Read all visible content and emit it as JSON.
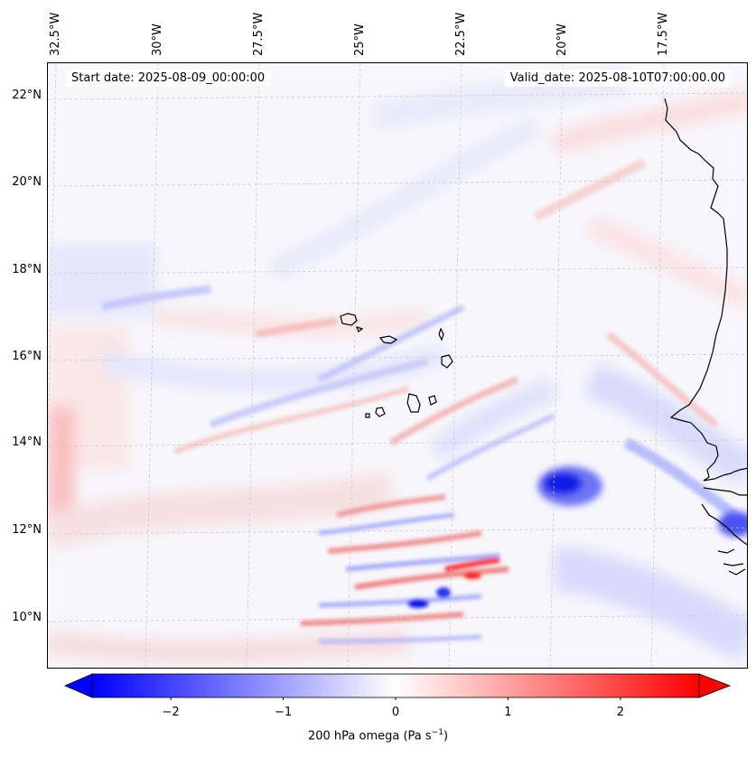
{
  "header": {
    "start_date": "Start date: 2025-08-09_00:00:00",
    "valid_date": "Valid_date: 2025-08-10T07:00:00.00"
  },
  "axes": {
    "lon_labels": [
      "32.5°W",
      "30°W",
      "27.5°W",
      "25°W",
      "22.5°W",
      "20°W",
      "17.5°W"
    ],
    "lat_labels": [
      "22°N",
      "20°N",
      "18°N",
      "16°N",
      "14°N",
      "12°N",
      "10°N"
    ]
  },
  "colorbar": {
    "tick_labels": [
      "−2",
      "−1",
      "0",
      "1",
      "2"
    ],
    "label_main": "200 hPa omega (Pa s",
    "label_sup": "−1",
    "label_end": ")",
    "range": [
      -2.7,
      2.7
    ],
    "cmap": "bwr",
    "extend": "both"
  },
  "map": {
    "field": "200 hPa omega",
    "lon_range": [
      "33°W",
      "15.8°W"
    ],
    "lat_range": [
      "8.9°N",
      "22.8°N"
    ],
    "colors": {
      "negative": "#0000ff",
      "zero": "#ffffff",
      "positive": "#ff0000",
      "coast": "#000000",
      "grid": "#c8c8c8"
    }
  }
}
